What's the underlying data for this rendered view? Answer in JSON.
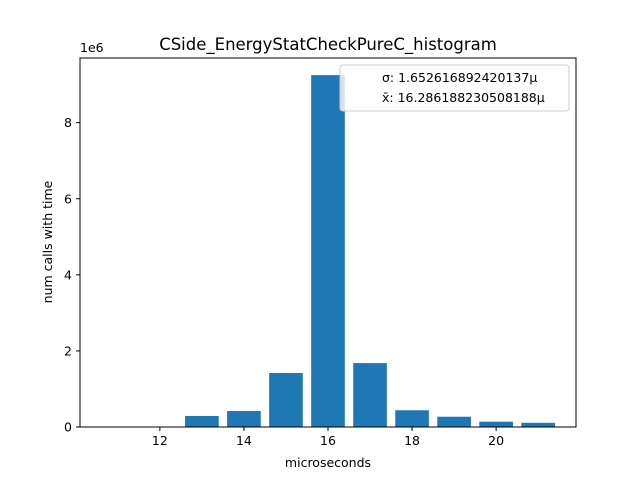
{
  "chart_data": {
    "type": "bar",
    "title": "CSide_EnergyStatCheckPureC_histogram",
    "xlabel": "microseconds",
    "ylabel": "num calls with time",
    "y_offset_label": "1e6",
    "x": [
      11,
      12,
      13,
      14,
      15,
      16,
      17,
      18,
      19,
      20,
      21
    ],
    "values": [
      0,
      0,
      290000,
      420000,
      1420000,
      9250000,
      1680000,
      440000,
      270000,
      140000,
      110000
    ],
    "color": "#1f77b4",
    "xlim": [
      10.1,
      21.9
    ],
    "ylim": [
      0,
      9700000
    ],
    "x_ticks": [
      12,
      14,
      16,
      18,
      20
    ],
    "y_ticks": [
      0,
      2000000,
      4000000,
      6000000,
      8000000
    ],
    "y_tick_labels": [
      "0",
      "2",
      "4",
      "6",
      "8"
    ],
    "grid": false,
    "legend_position": "top-right",
    "legend": [
      "σ: 1.652616892420137μ",
      "x̄: 16.286188230508188μ"
    ]
  }
}
